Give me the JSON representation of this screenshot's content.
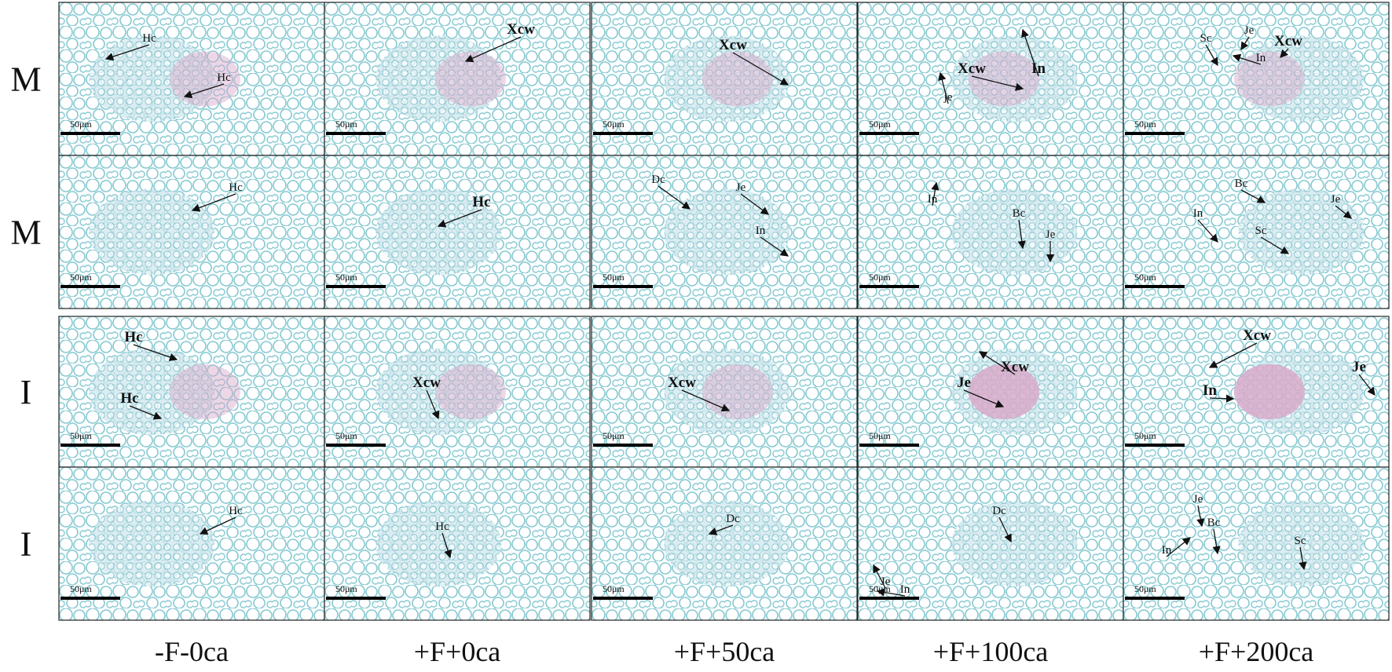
{
  "rows": [
    {
      "label": "M",
      "panels": [
        {
          "scale": "50μm",
          "annotations": [
            "Hc",
            "Hc"
          ]
        },
        {
          "scale": "50μm",
          "annotations": [
            "Xcw"
          ]
        },
        {
          "scale": "50μm",
          "annotations": [
            "Xcw"
          ]
        },
        {
          "scale": "50μm",
          "annotations": [
            "Xcw",
            "In",
            "je"
          ]
        },
        {
          "scale": "50μm",
          "annotations": [
            "Je",
            "Xcw",
            "Sc",
            "In"
          ]
        }
      ]
    },
    {
      "label": "M",
      "panels": [
        {
          "scale": "50μm",
          "annotations": [
            "Hc"
          ]
        },
        {
          "scale": "50μm",
          "annotations": [
            "Hc"
          ]
        },
        {
          "scale": "50μm",
          "annotations": [
            "Dc",
            "Je",
            "In"
          ]
        },
        {
          "scale": "50μm",
          "annotations": [
            "In",
            "Bc",
            "Je"
          ]
        },
        {
          "scale": "50μm",
          "annotations": [
            "Bc",
            "Je",
            "In",
            "Sc"
          ]
        }
      ]
    },
    {
      "label": "I",
      "panels": [
        {
          "scale": "50μm",
          "annotations": [
            "Hc",
            "Hc"
          ]
        },
        {
          "scale": "50μm",
          "annotations": [
            "Xcw"
          ]
        },
        {
          "scale": "50μm",
          "annotations": [
            "Xcw"
          ]
        },
        {
          "scale": "50μm",
          "annotations": [
            "Xcw",
            "Je"
          ]
        },
        {
          "scale": "50μm",
          "annotations": [
            "Xcw",
            "Je",
            "In"
          ]
        }
      ]
    },
    {
      "label": "I",
      "panels": [
        {
          "scale": "50μm",
          "annotations": [
            "Hc"
          ]
        },
        {
          "scale": "50μm",
          "annotations": [
            "Hc"
          ]
        },
        {
          "scale": "50μm",
          "annotations": [
            "Dc"
          ]
        },
        {
          "scale": "50μm",
          "annotations": [
            "Je",
            "In",
            "Dc"
          ]
        },
        {
          "scale": "50μm",
          "annotations": [
            "Je",
            "Bc",
            "In",
            "Sc"
          ]
        }
      ]
    }
  ],
  "columns": [
    "-F-0ca",
    "+F+0ca",
    "+F+50ca",
    "+F+100ca",
    "+F+200ca"
  ]
}
